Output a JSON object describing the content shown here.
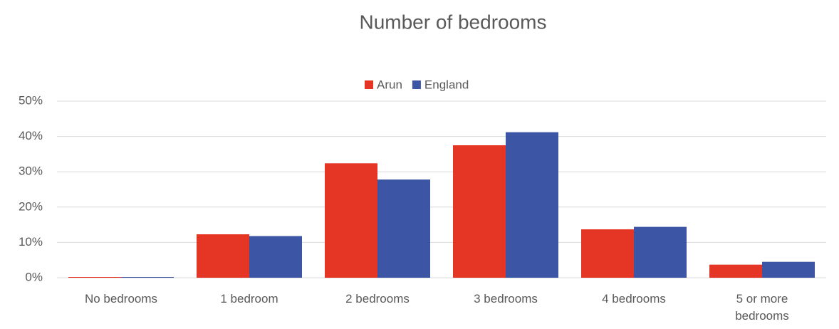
{
  "chart_data": {
    "type": "bar",
    "title": "Number of bedrooms",
    "categories": [
      "No bedrooms",
      "1 bedroom",
      "2 bedrooms",
      "3 bedrooms",
      "4 bedrooms",
      "5 or more bedrooms"
    ],
    "series": [
      {
        "name": "Arun",
        "color": "#e53524",
        "values": [
          0.2,
          12.3,
          32.4,
          37.5,
          13.7,
          3.7
        ]
      },
      {
        "name": "England",
        "color": "#3c56a5",
        "values": [
          0.2,
          11.8,
          27.8,
          41.2,
          14.4,
          4.5
        ]
      }
    ],
    "ylim": [
      0,
      50
    ],
    "yticks": [
      {
        "value": 0,
        "label": "0%"
      },
      {
        "value": 10,
        "label": "10%"
      },
      {
        "value": 20,
        "label": "20%"
      },
      {
        "value": 30,
        "label": "30%"
      },
      {
        "value": 40,
        "label": "40%"
      },
      {
        "value": 50,
        "label": "50%"
      }
    ],
    "grid": true,
    "legend": "top"
  }
}
